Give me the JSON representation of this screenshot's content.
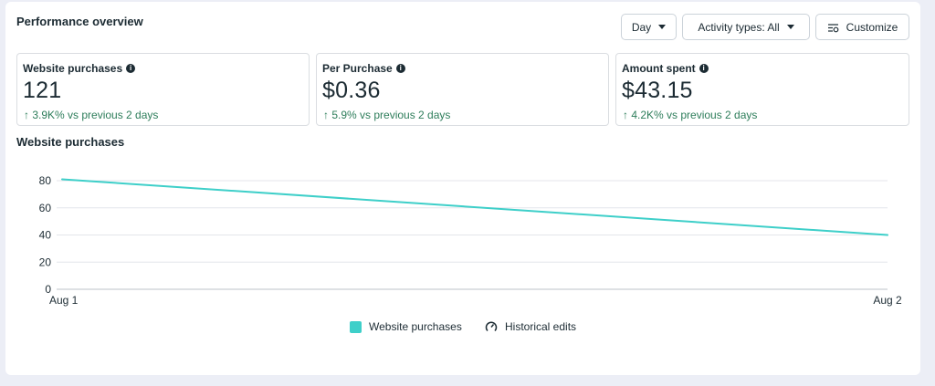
{
  "header": {
    "title": "Performance overview",
    "day_label": "Day",
    "activity_label": "Activity types: All",
    "customize_label": "Customize"
  },
  "metrics": [
    {
      "label": "Website purchases",
      "value": "121",
      "change": "↑  3.9K% vs previous 2 days"
    },
    {
      "label": "Per Purchase",
      "value": "$0.36",
      "change": "↑  5.9% vs previous 2 days"
    },
    {
      "label": "Amount spent",
      "value": "$43.15",
      "change": "↑  4.2K% vs previous 2 days"
    }
  ],
  "chart": {
    "title": "Website purchases",
    "legend": {
      "series_label": "Website purchases",
      "edits_label": "Historical edits"
    }
  },
  "colors": {
    "line": "#3ecfc9",
    "positive": "#2d7d5a",
    "grid": "#e4e6eb"
  },
  "icons": {
    "customize": "sliders-icon",
    "info": "info-icon",
    "edits": "gauge-icon"
  },
  "chart_data": {
    "type": "line",
    "title": "Website purchases",
    "xlabel": "",
    "ylabel": "",
    "categories": [
      "Aug 1",
      "Aug 2"
    ],
    "series": [
      {
        "name": "Website purchases",
        "values": [
          81,
          40
        ]
      }
    ],
    "ylim": [
      0,
      80
    ],
    "yticks": [
      0,
      20,
      40,
      60,
      80
    ],
    "grid": true,
    "legend": "bottom"
  }
}
